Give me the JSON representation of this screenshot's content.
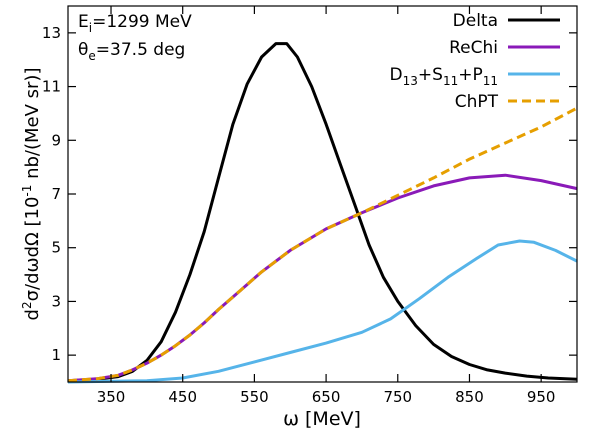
{
  "chart_data": {
    "type": "line",
    "xlabel": "ω [MeV]",
    "ylabel": {
      "base": "d",
      "sup1": "2",
      "mid": "σ/dωdΩ [10",
      "sup2": "-1",
      "end": " nb/(MeV sr)]"
    },
    "xlim": [
      290,
      1000
    ],
    "ylim": [
      0,
      14
    ],
    "xticks": [
      350,
      450,
      550,
      650,
      750,
      850,
      950
    ],
    "yticks": [
      1,
      3,
      5,
      7,
      9,
      11,
      13
    ],
    "grid": false,
    "legend_position": "top-right",
    "annotations": [
      {
        "name": "beam-energy",
        "main": "E",
        "sub": "i",
        "rest": "=1299 MeV"
      },
      {
        "name": "electron-angle",
        "main": "θ",
        "sub": "e",
        "rest": "=37.5 deg"
      }
    ],
    "series": [
      {
        "name": "Delta",
        "legend": [
          {
            "t": "Delta"
          }
        ],
        "color": "#000000",
        "dash": "",
        "x": [
          290,
          330,
          360,
          380,
          400,
          420,
          440,
          460,
          480,
          500,
          520,
          540,
          560,
          580,
          595,
          610,
          630,
          650,
          670,
          690,
          710,
          730,
          750,
          775,
          800,
          825,
          850,
          875,
          900,
          930,
          960,
          1000
        ],
        "y": [
          0.05,
          0.1,
          0.2,
          0.4,
          0.8,
          1.5,
          2.6,
          4.0,
          5.6,
          7.6,
          9.6,
          11.1,
          12.1,
          12.6,
          12.6,
          12.1,
          11.0,
          9.6,
          8.1,
          6.6,
          5.1,
          3.9,
          3.0,
          2.1,
          1.4,
          0.95,
          0.65,
          0.45,
          0.33,
          0.22,
          0.15,
          0.1
        ]
      },
      {
        "name": "ReChi",
        "legend": [
          {
            "t": "ReChi"
          }
        ],
        "color": "#8a1ab8",
        "dash": "",
        "x": [
          290,
          330,
          360,
          380,
          400,
          420,
          440,
          460,
          480,
          500,
          530,
          560,
          600,
          650,
          700,
          750,
          800,
          850,
          900,
          950,
          1000
        ],
        "y": [
          0.05,
          0.12,
          0.25,
          0.45,
          0.7,
          1.0,
          1.35,
          1.75,
          2.2,
          2.7,
          3.4,
          4.1,
          4.9,
          5.7,
          6.3,
          6.85,
          7.3,
          7.6,
          7.7,
          7.5,
          7.2
        ]
      },
      {
        "name": "D13+S11+P11",
        "legend": [
          {
            "t": "D"
          },
          {
            "t": "13",
            "sub": true
          },
          {
            "t": "+S"
          },
          {
            "t": "11",
            "sub": true
          },
          {
            "t": "+P"
          },
          {
            "t": "11",
            "sub": true
          }
        ],
        "color": "#56b4e9",
        "dash": "",
        "x": [
          290,
          400,
          450,
          500,
          550,
          600,
          650,
          700,
          740,
          780,
          820,
          860,
          890,
          920,
          940,
          970,
          1000
        ],
        "y": [
          0.0,
          0.05,
          0.15,
          0.4,
          0.75,
          1.1,
          1.45,
          1.85,
          2.35,
          3.1,
          3.9,
          4.6,
          5.1,
          5.25,
          5.2,
          4.9,
          4.5
        ]
      },
      {
        "name": "ChPT",
        "legend": [
          {
            "t": "ChPT"
          }
        ],
        "color": "#e69f00",
        "dash": "9,5",
        "x": [
          290,
          330,
          360,
          380,
          400,
          420,
          440,
          460,
          480,
          500,
          530,
          560,
          600,
          650,
          700,
          750,
          800,
          850,
          900,
          950,
          1000
        ],
        "y": [
          0.05,
          0.12,
          0.25,
          0.45,
          0.7,
          1.0,
          1.35,
          1.75,
          2.2,
          2.7,
          3.4,
          4.1,
          4.9,
          5.7,
          6.3,
          6.95,
          7.6,
          8.3,
          8.9,
          9.5,
          10.2
        ]
      }
    ]
  }
}
